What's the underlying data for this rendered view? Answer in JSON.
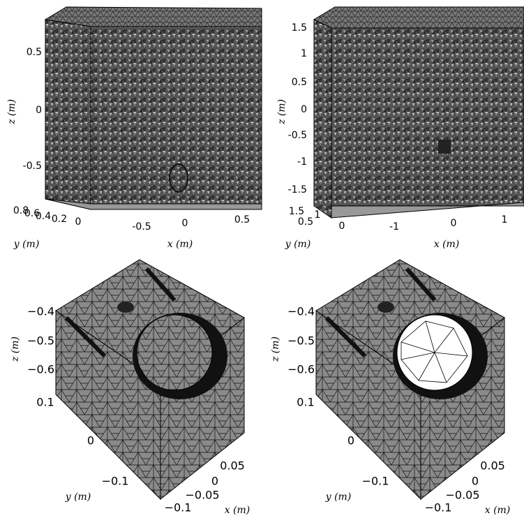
{
  "panels": [
    {
      "z_label": "z (m)",
      "y_label": "y (m)",
      "x_label": "x (m)",
      "z_ticks": [
        "0.5",
        "0",
        "-0.5"
      ],
      "y_ticks": [
        "0.8",
        "0.6",
        "0.4",
        "0.2",
        "0"
      ],
      "x_ticks": [
        "-0.5",
        "0",
        "0.5"
      ]
    },
    {
      "z_label": "z (m)",
      "y_label": "y (m)",
      "x_label": "x (m)",
      "z_ticks": [
        "1.5",
        "1",
        "0.5",
        "0",
        "-0.5",
        "-1",
        "-1.5"
      ],
      "y_ticks": [
        "1.5",
        "1",
        "0.5",
        "0"
      ],
      "x_ticks": [
        "-1",
        "0",
        "1"
      ]
    },
    {
      "z_label": "z (m)",
      "y_label": "y (m)",
      "x_label": "x (m)",
      "z_ticks": [
        "−0.4",
        "−0.5",
        "−0.6"
      ],
      "y_ticks": [
        "0.1",
        "0",
        "−0.1"
      ],
      "x_ticks": [
        "−0.1",
        "−0.05",
        "0",
        "0.05"
      ]
    },
    {
      "z_label": "z (m)",
      "y_label": "y (m)",
      "x_label": "x (m)",
      "z_ticks": [
        "−0.4",
        "−0.5",
        "−0.6"
      ],
      "y_ticks": [
        "0.1",
        "0",
        "−0.1"
      ],
      "x_ticks": [
        "−0.1",
        "−0.05",
        "0",
        "0.05"
      ]
    }
  ]
}
